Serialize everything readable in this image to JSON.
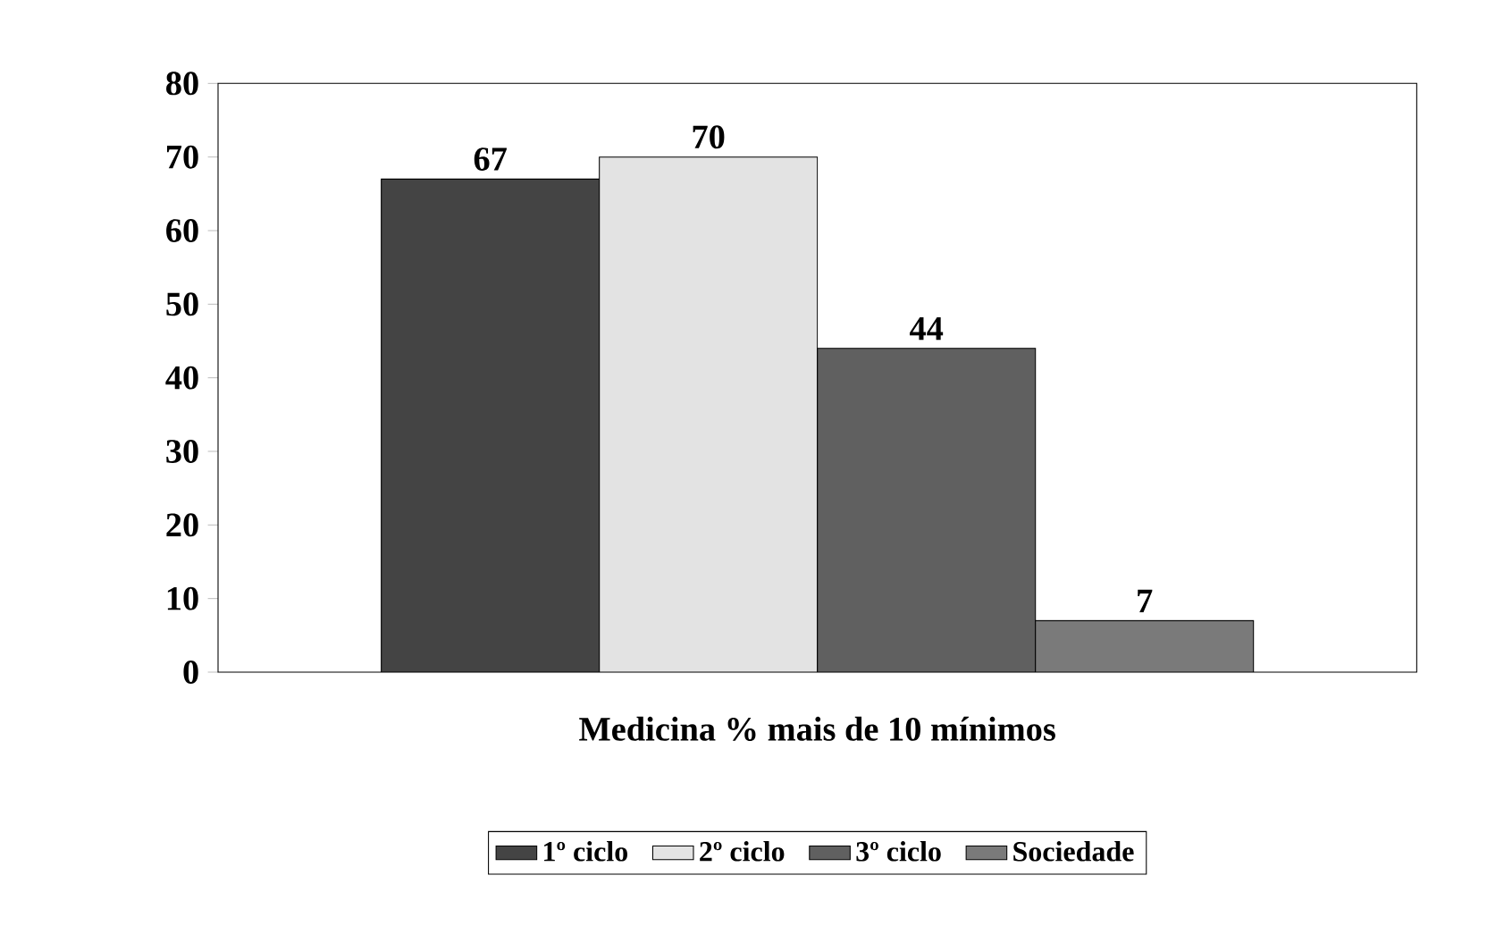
{
  "chart_data": {
    "type": "bar",
    "xlabel": "Medicina % mais de 10 mínimos",
    "categories": [
      null
    ],
    "series": [
      {
        "name": "1º ciclo",
        "color": "#444444",
        "values": [
          67
        ]
      },
      {
        "name": "2º ciclo",
        "color": "#e3e3e3",
        "values": [
          70
        ]
      },
      {
        "name": "3º ciclo",
        "color": "#606060",
        "values": [
          44
        ]
      },
      {
        "name": "Sociedade",
        "color": "#7a7a7a",
        "values": [
          7
        ]
      }
    ],
    "ylim": [
      0,
      80
    ],
    "yticks": [
      0,
      10,
      20,
      30,
      40,
      50,
      60,
      70,
      80
    ],
    "data_labels": true,
    "legend": "bottom"
  }
}
